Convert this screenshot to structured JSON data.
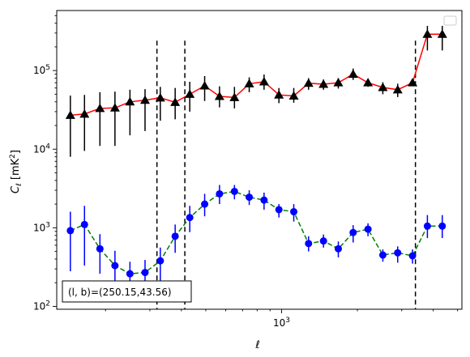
{
  "chart_data": {
    "type": "line",
    "x_scale": "log",
    "y_scale": "log",
    "xlim": [
      128,
      5200
    ],
    "ylim": [
      92,
      580000
    ],
    "xlabel": "ℓ",
    "ylabel": "C_ℓ  [mK²]",
    "x_ticks": [
      {
        "value": 1000,
        "base": "10",
        "exp": "3"
      }
    ],
    "y_ticks": [
      {
        "value": 100,
        "base": "10",
        "exp": "2"
      },
      {
        "value": 1000,
        "base": "10",
        "exp": "3"
      },
      {
        "value": 10000,
        "base": "10",
        "exp": "4"
      },
      {
        "value": 100000,
        "base": "10",
        "exp": "5"
      }
    ],
    "annotation": "(l, b)=(250.15,43.56)",
    "legend": {
      "position": "top-right",
      "entries": []
    },
    "vlines": [
      {
        "x": 320,
        "y_range": [
          92,
          240000
        ]
      },
      {
        "x": 413,
        "y_range": [
          92,
          240000
        ]
      },
      {
        "x": 3400,
        "y_range": [
          92,
          240000
        ]
      }
    ],
    "series": [
      {
        "line_color": "#ff0000",
        "line_style": "solid",
        "marker": "triangle",
        "marker_color": "#000000",
        "x": [
          145,
          165,
          190,
          218,
          250,
          287,
          330,
          378,
          432,
          495,
          567,
          650,
          744,
          852,
          976,
          1118,
          1280,
          1467,
          1680,
          1924,
          2204,
          2524,
          2891,
          3311,
          3793,
          4346
        ],
        "y": [
          27000,
          28000,
          33000,
          33500,
          40000,
          42000,
          45000,
          39500,
          50000,
          64000,
          47000,
          45500,
          68000,
          72000,
          49000,
          47500,
          69000,
          67000,
          70000,
          90000,
          70000,
          61000,
          57000,
          70000,
          290000,
          290000
        ],
        "yerr_low": [
          8000,
          9500,
          11000,
          11000,
          15000,
          17000,
          23000,
          24000,
          30000,
          41000,
          34000,
          33000,
          53000,
          57000,
          38500,
          39000,
          57000,
          57000,
          59000,
          76000,
          62000,
          50000,
          46000,
          70000,
          180000,
          180000
        ],
        "yerr_high": [
          48000,
          49000,
          53000,
          54000,
          57000,
          58000,
          62000,
          60000,
          72000,
          85000,
          63000,
          62000,
          82000,
          89000,
          60000,
          60000,
          80000,
          77000,
          80000,
          106000,
          78000,
          71000,
          68000,
          70000,
          370000,
          370000
        ]
      },
      {
        "line_color": "#008000",
        "line_style": "dashed",
        "marker": "circle",
        "marker_color": "#0000ff",
        "x": [
          145,
          165,
          190,
          218,
          250,
          287,
          330,
          378,
          432,
          495,
          567,
          650,
          744,
          852,
          976,
          1118,
          1280,
          1467,
          1680,
          1924,
          2204,
          2524,
          2891,
          3311,
          3793,
          4346
        ],
        "y": [
          920,
          1100,
          540,
          330,
          260,
          270,
          380,
          780,
          1350,
          2000,
          2700,
          2900,
          2450,
          2250,
          1700,
          1600,
          630,
          680,
          540,
          870,
          960,
          450,
          480,
          440,
          1050,
          1050
        ],
        "yerr_low": [
          280,
          330,
          260,
          195,
          160,
          145,
          210,
          480,
          880,
          1400,
          2000,
          2300,
          1950,
          1700,
          1350,
          1200,
          500,
          560,
          420,
          650,
          780,
          370,
          360,
          350,
          740,
          740
        ],
        "yerr_high": [
          1600,
          1900,
          830,
          510,
          370,
          390,
          560,
          1100,
          1900,
          2700,
          3500,
          3500,
          3000,
          2800,
          2000,
          2000,
          780,
          820,
          670,
          1080,
          1140,
          530,
          580,
          530,
          1450,
          1450
        ]
      }
    ]
  }
}
